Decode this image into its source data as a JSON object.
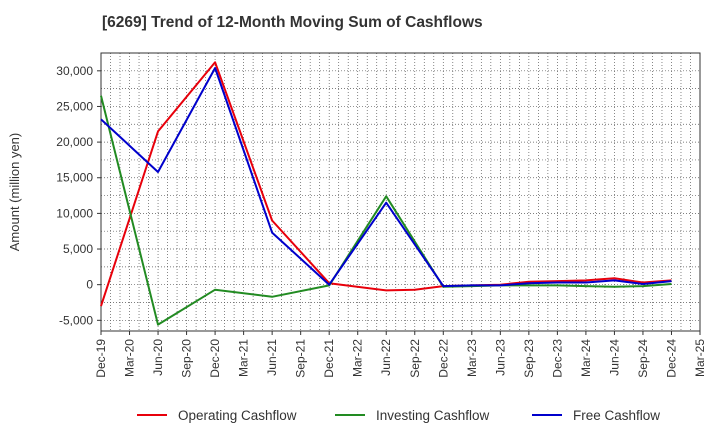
{
  "chart_data": {
    "type": "line",
    "title": "[6269]  Trend of 12-Month Moving Sum of Cashflows",
    "xlabel": "",
    "ylabel": "Amount (million yen)",
    "ylim": [
      -6500,
      32500
    ],
    "yticks": [
      -5000,
      0,
      5000,
      10000,
      15000,
      20000,
      25000,
      30000
    ],
    "ytick_labels": [
      "-5,000",
      "0",
      "5,000",
      "10,000",
      "15,000",
      "20,000",
      "25,000",
      "30,000"
    ],
    "categories": [
      "Dec-19",
      "Mar-20",
      "Jun-20",
      "Sep-20",
      "Dec-20",
      "Mar-21",
      "Jun-21",
      "Sep-21",
      "Dec-21",
      "Mar-22",
      "Jun-22",
      "Sep-22",
      "Dec-22",
      "Mar-23",
      "Jun-23",
      "Sep-23",
      "Dec-23",
      "Mar-24",
      "Jun-24",
      "Sep-24",
      "Dec-24",
      "Mar-25"
    ],
    "grid": true,
    "legend_position": "bottom",
    "series": [
      {
        "name": "Operating Cashflow",
        "color": "#e8000b",
        "values": [
          -3000,
          null,
          21500,
          null,
          31200,
          null,
          9000,
          null,
          200,
          null,
          -800,
          -700,
          -200,
          -100,
          0,
          400,
          500,
          600,
          900,
          300,
          600,
          null
        ]
      },
      {
        "name": "Investing Cashflow",
        "color": "#228b22",
        "values": [
          26500,
          null,
          -5600,
          null,
          -700,
          null,
          -1700,
          null,
          -100,
          null,
          12400,
          null,
          -300,
          -200,
          -100,
          -100,
          -100,
          -200,
          -300,
          -200,
          100,
          null
        ]
      },
      {
        "name": "Free Cashflow",
        "color": "#0000cc",
        "values": [
          23200,
          null,
          15800,
          null,
          30400,
          null,
          7300,
          null,
          0,
          null,
          11500,
          null,
          -200,
          -100,
          -100,
          200,
          300,
          300,
          600,
          100,
          500,
          null
        ]
      }
    ]
  }
}
